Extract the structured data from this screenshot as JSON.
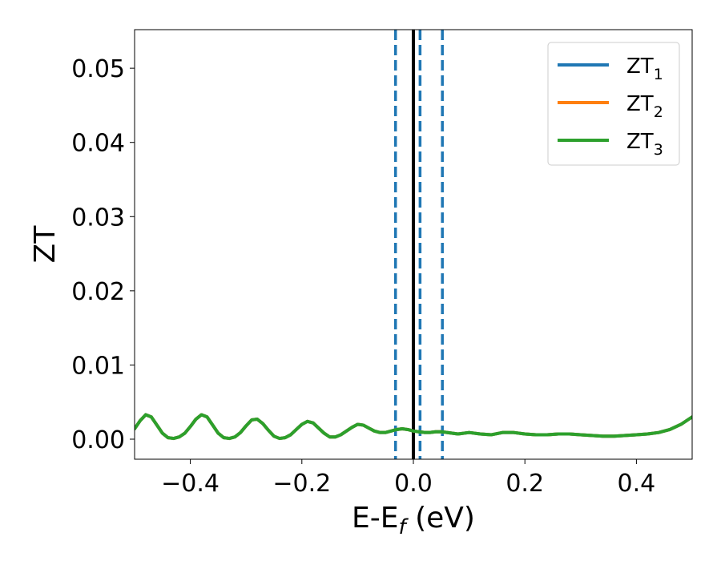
{
  "chart_data": {
    "type": "line",
    "title": "",
    "xlabel": {
      "main": "E-E",
      "sub": "f",
      "suffix": " (eV)"
    },
    "ylabel": "ZT",
    "xlim": [
      -0.5,
      0.5
    ],
    "ylim": [
      -0.0027,
      0.0552
    ],
    "xticks": [
      -0.4,
      -0.2,
      0.0,
      0.2,
      0.4
    ],
    "xtick_labels": [
      "−0.4",
      "−0.2",
      "0.0",
      "0.2",
      "0.4"
    ],
    "yticks": [
      0.0,
      0.01,
      0.02,
      0.03,
      0.04,
      0.05
    ],
    "ytick_labels": [
      "0.00",
      "0.01",
      "0.02",
      "0.03",
      "0.04",
      "0.05"
    ],
    "grid": false,
    "legend_position": "top-right",
    "vertical_lines": [
      {
        "x": 0.0,
        "style": "solid",
        "color": "#000000"
      },
      {
        "x": -0.032,
        "style": "dashed",
        "color": "#1f77b4"
      },
      {
        "x": 0.012,
        "style": "dashed",
        "color": "#1f77b4"
      },
      {
        "x": 0.052,
        "style": "dashed",
        "color": "#1f77b4"
      }
    ],
    "x": [
      -0.5,
      -0.49,
      -0.48,
      -0.47,
      -0.46,
      -0.45,
      -0.44,
      -0.43,
      -0.42,
      -0.41,
      -0.4,
      -0.39,
      -0.38,
      -0.37,
      -0.36,
      -0.35,
      -0.34,
      -0.33,
      -0.32,
      -0.31,
      -0.3,
      -0.29,
      -0.28,
      -0.27,
      -0.26,
      -0.25,
      -0.24,
      -0.23,
      -0.22,
      -0.21,
      -0.2,
      -0.19,
      -0.18,
      -0.17,
      -0.16,
      -0.15,
      -0.14,
      -0.13,
      -0.12,
      -0.11,
      -0.1,
      -0.09,
      -0.08,
      -0.07,
      -0.06,
      -0.05,
      -0.04,
      -0.03,
      -0.02,
      -0.01,
      0.0,
      0.01,
      0.02,
      0.03,
      0.04,
      0.05,
      0.06,
      0.08,
      0.1,
      0.12,
      0.14,
      0.16,
      0.18,
      0.2,
      0.22,
      0.24,
      0.26,
      0.28,
      0.3,
      0.32,
      0.34,
      0.36,
      0.38,
      0.4,
      0.42,
      0.44,
      0.46,
      0.48,
      0.5
    ],
    "series": [
      {
        "name_main": "ZT",
        "name_sub": "1",
        "color": "#1f77b4",
        "values": [
          0.0014,
          0.0025,
          0.0033,
          0.003,
          0.0019,
          0.0008,
          0.0002,
          0.0001,
          0.0003,
          0.0008,
          0.0017,
          0.0027,
          0.0033,
          0.003,
          0.0019,
          0.0008,
          0.0002,
          0.0001,
          0.0003,
          0.0009,
          0.0018,
          0.0026,
          0.0027,
          0.0021,
          0.0012,
          0.0004,
          0.0001,
          0.0002,
          0.0006,
          0.0013,
          0.002,
          0.0024,
          0.0022,
          0.0015,
          0.0008,
          0.0003,
          0.0003,
          0.0006,
          0.0011,
          0.0016,
          0.002,
          0.0019,
          0.0015,
          0.0011,
          0.0009,
          0.0009,
          0.0011,
          0.0013,
          0.0014,
          0.0013,
          0.0011,
          0.001,
          0.0009,
          0.0009,
          0.001,
          0.001,
          0.0009,
          0.0007,
          0.0009,
          0.0007,
          0.0006,
          0.0009,
          0.0009,
          0.0007,
          0.0006,
          0.0006,
          0.0007,
          0.0007,
          0.0006,
          0.0005,
          0.0004,
          0.0004,
          0.0005,
          0.0006,
          0.0007,
          0.0009,
          0.0013,
          0.002,
          0.003
        ]
      },
      {
        "name_main": "ZT",
        "name_sub": "2",
        "color": "#ff7f0e",
        "values": [
          0.0014,
          0.0025,
          0.0033,
          0.003,
          0.0019,
          0.0008,
          0.0002,
          0.0001,
          0.0003,
          0.0008,
          0.0017,
          0.0027,
          0.0033,
          0.003,
          0.0019,
          0.0008,
          0.0002,
          0.0001,
          0.0003,
          0.0009,
          0.0018,
          0.0026,
          0.0027,
          0.0021,
          0.0012,
          0.0004,
          0.0001,
          0.0002,
          0.0006,
          0.0013,
          0.002,
          0.0024,
          0.0022,
          0.0015,
          0.0008,
          0.0003,
          0.0003,
          0.0006,
          0.0011,
          0.0016,
          0.002,
          0.0019,
          0.0015,
          0.0011,
          0.0009,
          0.0009,
          0.0011,
          0.0013,
          0.0014,
          0.0013,
          0.0011,
          0.001,
          0.0009,
          0.0009,
          0.001,
          0.001,
          0.0009,
          0.0007,
          0.0009,
          0.0007,
          0.0006,
          0.0009,
          0.0009,
          0.0007,
          0.0006,
          0.0006,
          0.0007,
          0.0007,
          0.0006,
          0.0005,
          0.0004,
          0.0004,
          0.0005,
          0.0006,
          0.0007,
          0.0009,
          0.0013,
          0.002,
          0.003
        ]
      },
      {
        "name_main": "ZT",
        "name_sub": "3",
        "color": "#2ca02c",
        "values": [
          0.0014,
          0.0025,
          0.0033,
          0.003,
          0.0019,
          0.0008,
          0.0002,
          0.0001,
          0.0003,
          0.0008,
          0.0017,
          0.0027,
          0.0033,
          0.003,
          0.0019,
          0.0008,
          0.0002,
          0.0001,
          0.0003,
          0.0009,
          0.0018,
          0.0026,
          0.0027,
          0.0021,
          0.0012,
          0.0004,
          0.0001,
          0.0002,
          0.0006,
          0.0013,
          0.002,
          0.0024,
          0.0022,
          0.0015,
          0.0008,
          0.0003,
          0.0003,
          0.0006,
          0.0011,
          0.0016,
          0.002,
          0.0019,
          0.0015,
          0.0011,
          0.0009,
          0.0009,
          0.0011,
          0.0013,
          0.0014,
          0.0013,
          0.0011,
          0.001,
          0.0009,
          0.0009,
          0.001,
          0.001,
          0.0009,
          0.0007,
          0.0009,
          0.0007,
          0.0006,
          0.0009,
          0.0009,
          0.0007,
          0.0006,
          0.0006,
          0.0007,
          0.0007,
          0.0006,
          0.0005,
          0.0004,
          0.0004,
          0.0005,
          0.0006,
          0.0007,
          0.0009,
          0.0013,
          0.002,
          0.003
        ]
      }
    ]
  }
}
